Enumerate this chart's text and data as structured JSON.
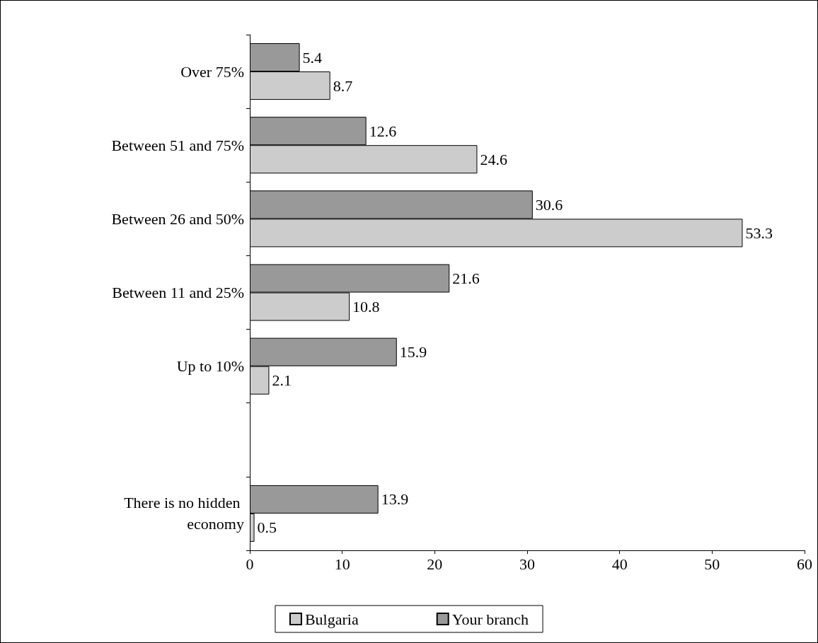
{
  "chart_data": {
    "type": "bar",
    "orientation": "horizontal",
    "categories": [
      "Over 75%",
      "Between 51 and 75%",
      "Between 26 and 50%",
      "Between 11 and 25%",
      "Up to 10%",
      null,
      "There is no hidden economy"
    ],
    "series": [
      {
        "name": "Bulgaria",
        "color": "#cccccc",
        "values": [
          8.7,
          24.6,
          53.3,
          10.8,
          2.1,
          null,
          0.5
        ]
      },
      {
        "name": "Your branch",
        "color": "#999999",
        "values": [
          5.4,
          12.6,
          30.6,
          21.6,
          15.9,
          null,
          13.9
        ]
      }
    ],
    "xlim": [
      0,
      60
    ],
    "xticks": [
      0,
      10,
      20,
      30,
      40,
      50,
      60
    ],
    "data_labels": true,
    "grid": false,
    "legend": "bottom"
  }
}
